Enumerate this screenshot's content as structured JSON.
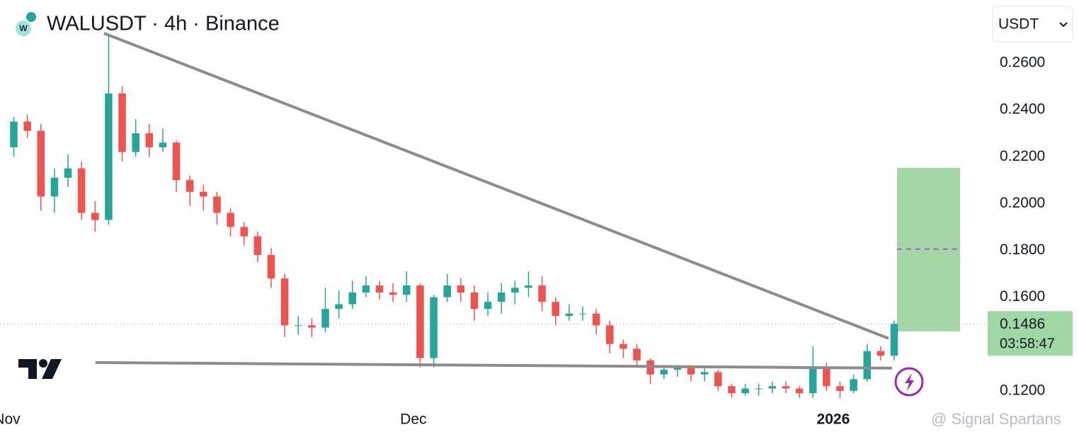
{
  "chart_data": {
    "type": "candlestick",
    "title": "WALUSDT · 4h · Binance",
    "currency": "USDT",
    "watermark": "@ Signal Spartans",
    "up_color": "#26a69a",
    "down_color": "#ef5350",
    "x": [
      0,
      1,
      2,
      3,
      4,
      5,
      6,
      7,
      8,
      9,
      10,
      11,
      12,
      13,
      14,
      15,
      16,
      17,
      18,
      19,
      20,
      21,
      22,
      23,
      24,
      25,
      26,
      27,
      28,
      29,
      30,
      31,
      32,
      33,
      34,
      35,
      36,
      37,
      38,
      39,
      40,
      41,
      42,
      43,
      44,
      45,
      46,
      47,
      48,
      49,
      50,
      51,
      52,
      53,
      54,
      55,
      56,
      57,
      58,
      59,
      60,
      61,
      62,
      63,
      64,
      65
    ],
    "open": [
      0.224,
      0.235,
      0.231,
      0.203,
      0.211,
      0.215,
      0.196,
      0.193,
      0.247,
      0.222,
      0.23,
      0.224,
      0.226,
      0.21,
      0.205,
      0.203,
      0.196,
      0.19,
      0.186,
      0.178,
      0.168,
      0.148,
      0.148,
      0.147,
      0.155,
      0.157,
      0.162,
      0.165,
      0.162,
      0.161,
      0.165,
      0.134,
      0.16,
      0.165,
      0.162,
      0.155,
      0.158,
      0.162,
      0.164,
      0.165,
      0.158,
      0.152,
      0.153,
      0.153,
      0.148,
      0.14,
      0.138,
      0.133,
      0.127,
      0.129,
      0.13,
      0.127,
      0.128,
      0.122,
      0.119,
      0.121,
      0.121,
      0.122,
      0.121,
      0.119,
      0.13,
      0.122,
      0.12,
      0.125,
      0.137,
      0.135
    ],
    "high": [
      0.237,
      0.238,
      0.234,
      0.215,
      0.221,
      0.218,
      0.201,
      0.272,
      0.25,
      0.236,
      0.234,
      0.232,
      0.227,
      0.212,
      0.208,
      0.205,
      0.198,
      0.192,
      0.188,
      0.181,
      0.17,
      0.152,
      0.151,
      0.164,
      0.163,
      0.167,
      0.169,
      0.167,
      0.166,
      0.171,
      0.166,
      0.161,
      0.17,
      0.168,
      0.165,
      0.162,
      0.166,
      0.167,
      0.171,
      0.169,
      0.16,
      0.157,
      0.156,
      0.155,
      0.15,
      0.142,
      0.14,
      0.134,
      0.131,
      0.131,
      0.131,
      0.13,
      0.129,
      0.123,
      0.123,
      0.123,
      0.124,
      0.124,
      0.122,
      0.139,
      0.132,
      0.124,
      0.127,
      0.14,
      0.139,
      0.15
    ],
    "low": [
      0.22,
      0.228,
      0.197,
      0.196,
      0.207,
      0.193,
      0.188,
      0.191,
      0.218,
      0.22,
      0.22,
      0.222,
      0.205,
      0.199,
      0.197,
      0.191,
      0.186,
      0.182,
      0.175,
      0.164,
      0.143,
      0.144,
      0.143,
      0.145,
      0.151,
      0.155,
      0.16,
      0.159,
      0.158,
      0.158,
      0.13,
      0.13,
      0.158,
      0.158,
      0.15,
      0.152,
      0.153,
      0.157,
      0.16,
      0.154,
      0.148,
      0.15,
      0.15,
      0.144,
      0.136,
      0.134,
      0.13,
      0.123,
      0.125,
      0.126,
      0.124,
      0.124,
      0.12,
      0.117,
      0.118,
      0.118,
      0.119,
      0.119,
      0.117,
      0.117,
      0.12,
      0.117,
      0.119,
      0.124,
      0.133,
      0.133
    ],
    "close": [
      0.235,
      0.231,
      0.203,
      0.211,
      0.215,
      0.196,
      0.193,
      0.247,
      0.222,
      0.23,
      0.224,
      0.226,
      0.21,
      0.205,
      0.203,
      0.196,
      0.19,
      0.186,
      0.178,
      0.168,
      0.148,
      0.148,
      0.147,
      0.155,
      0.157,
      0.162,
      0.165,
      0.162,
      0.161,
      0.165,
      0.134,
      0.16,
      0.165,
      0.162,
      0.155,
      0.158,
      0.162,
      0.164,
      0.165,
      0.158,
      0.152,
      0.153,
      0.153,
      0.148,
      0.14,
      0.138,
      0.133,
      0.127,
      0.129,
      0.13,
      0.127,
      0.128,
      0.122,
      0.119,
      0.121,
      0.121,
      0.122,
      0.121,
      0.119,
      0.13,
      0.122,
      0.12,
      0.125,
      0.137,
      0.135,
      0.1486
    ],
    "xlim": [
      -1.02,
      71.9
    ],
    "xticks": [
      {
        "value": -0.5,
        "label": "Nov"
      },
      {
        "value": 29.5,
        "label": "Dec"
      },
      {
        "value": 60.5,
        "label": "2026"
      }
    ],
    "ylim": [
      0.113,
      0.2869
    ],
    "yticks": [
      {
        "value": 0.12,
        "label": "0.1200"
      },
      {
        "value": 0.16,
        "label": "0.1600"
      },
      {
        "value": 0.18,
        "label": "0.1800"
      },
      {
        "value": 0.2,
        "label": "0.2000"
      },
      {
        "value": 0.22,
        "label": "0.2200"
      },
      {
        "value": 0.24,
        "label": "0.2400"
      },
      {
        "value": 0.26,
        "label": "0.2600"
      }
    ],
    "last_price": 0.1486,
    "countdown": "03:58:47",
    "trendline_color": "#8c8c8c",
    "trendlines": [
      {
        "x": [
          6.66,
          64.58
        ],
        "y": [
          0.2727,
          0.1424
        ]
      },
      {
        "x": [
          6.03,
          64.84
        ],
        "y": [
          0.1321,
          0.1297
        ]
      }
    ],
    "target_box": {
      "x": [
        65.2,
        69.86
      ],
      "y": [
        0.1454,
        0.2152
      ],
      "mid": 0.1805,
      "color": "#a5d6a7",
      "mid_color": "#9c4fa8"
    }
  }
}
